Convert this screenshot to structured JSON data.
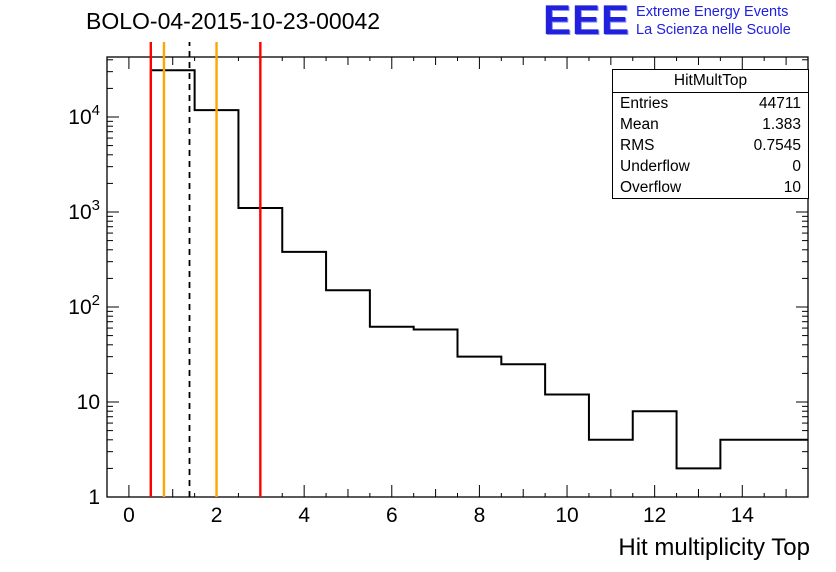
{
  "header": {
    "title": "BOLO-04-2015-10-23-00042",
    "logo": {
      "acronym": "EEE",
      "line1": "Extreme Energy Events",
      "line2": "La Scienza nelle Scuole",
      "color": "#2020dd"
    }
  },
  "stats_box": {
    "title": "HitMultTop",
    "rows": [
      {
        "label": "Entries",
        "value": "44711"
      },
      {
        "label": "Mean",
        "value": "1.383"
      },
      {
        "label": "RMS",
        "value": "0.7545"
      },
      {
        "label": "Underflow",
        "value": "0"
      },
      {
        "label": "Overflow",
        "value": "10"
      }
    ]
  },
  "chart_data": {
    "type": "bar",
    "subtype": "step-histogram",
    "title": "BOLO-04-2015-10-23-00042",
    "xlabel": "Hit multiplicity Top",
    "ylabel": "",
    "y_scale": "log",
    "x_range": [
      -0.5,
      15.5
    ],
    "y_range": [
      1,
      42800
    ],
    "bin_width": 1,
    "bin_centers": [
      1,
      2,
      3,
      4,
      5,
      6,
      7,
      8,
      9,
      10,
      11,
      12,
      13,
      14,
      15
    ],
    "counts": [
      31000,
      11800,
      1100,
      380,
      150,
      62,
      58,
      30,
      25,
      12,
      4,
      8,
      2,
      4,
      4
    ],
    "underflow": 0,
    "overflow": 10,
    "entries": 44711,
    "mean": 1.383,
    "rms": 0.7545,
    "x_tick_values": [
      0,
      2,
      4,
      6,
      8,
      10,
      12,
      14
    ],
    "x_tick_labels": [
      "0",
      "2",
      "4",
      "6",
      "8",
      "10",
      "12",
      "14"
    ],
    "y_tick_values": [
      1,
      10,
      100,
      1000,
      10000
    ],
    "y_tick_labels": [
      "1",
      "10",
      "10^2",
      "10^3",
      "10^4"
    ],
    "line_color": "#000000",
    "markers": [
      {
        "type": "vline",
        "label": "red-cut-low",
        "x": 0.5,
        "color": "#ff0000",
        "style": "solid"
      },
      {
        "type": "vline",
        "label": "orange-cut-low",
        "x": 0.8,
        "color": "#ffa500",
        "style": "solid"
      },
      {
        "type": "vline",
        "label": "mean-dashed",
        "x": 1.383,
        "color": "#000000",
        "style": "dashed"
      },
      {
        "type": "vline",
        "label": "orange-cut-high",
        "x": 2.0,
        "color": "#ffa500",
        "style": "solid"
      },
      {
        "type": "vline",
        "label": "red-cut-high",
        "x": 3.0,
        "color": "#ff0000",
        "style": "solid"
      }
    ],
    "grid": false,
    "legend": false
  }
}
